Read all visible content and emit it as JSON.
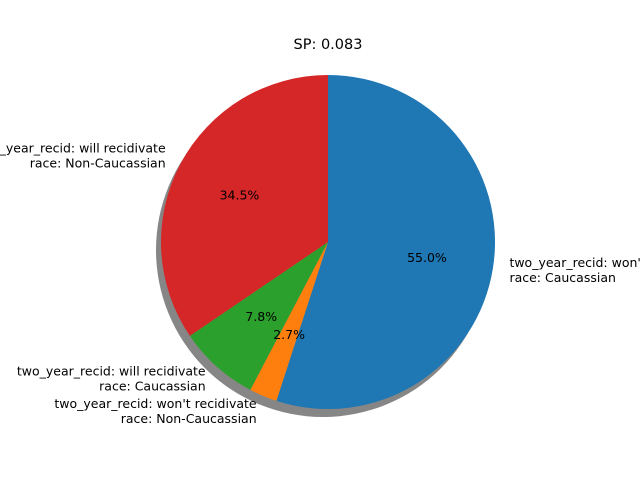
{
  "chart_data": {
    "type": "pie",
    "title": "SP: 0.083",
    "start_angle_deg": 90,
    "counterclock": false,
    "shadow": true,
    "slices": [
      {
        "label_line1": "two_year_recid: won't recidivate",
        "label_line2": "race: Caucassian",
        "percent": 55.0,
        "percent_label": "55.0%",
        "color": "#1f77b4"
      },
      {
        "label_line1": "two_year_recid: won't recidivate",
        "label_line2": "race: Non-Caucassian",
        "percent": 2.7,
        "percent_label": "2.7%",
        "color": "#ff7f0e"
      },
      {
        "label_line1": "two_year_recid: will recidivate",
        "label_line2": "race: Caucassian",
        "percent": 7.8,
        "percent_label": "7.8%",
        "color": "#2ca02c"
      },
      {
        "label_line1": "two_year_recid: will recidivate",
        "label_line2": "race: Non-Caucassian",
        "percent": 34.5,
        "percent_label": "34.5%",
        "color": "#d62728"
      }
    ]
  }
}
